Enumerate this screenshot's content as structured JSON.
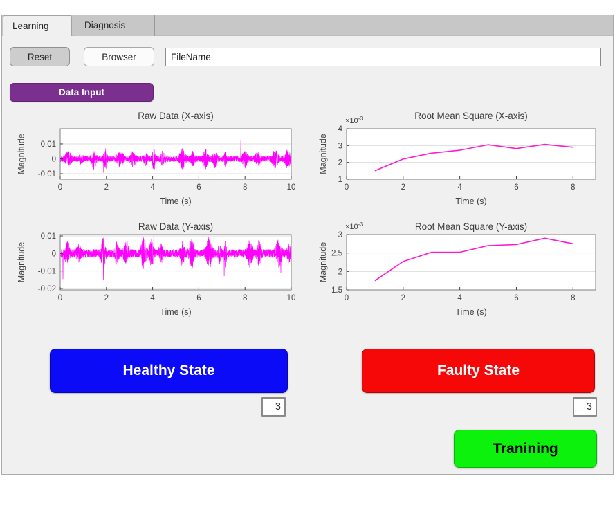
{
  "window": {
    "background": "#ffffff",
    "panel_background": "#f0f0f0"
  },
  "tabs": [
    {
      "label": "Learning",
      "active": true
    },
    {
      "label": "Diagnosis",
      "active": false
    }
  ],
  "toolbar": {
    "reset": "Reset",
    "browser": "Browser",
    "filename": "FileName"
  },
  "data_input": {
    "label": "Data Input",
    "color": "#7b2f8e"
  },
  "states": {
    "healthy": {
      "label": "Healthy State",
      "color": "#0b0bf7",
      "count": "3"
    },
    "faulty": {
      "label": "Faulty State",
      "color": "#f70808",
      "count": "3"
    },
    "training": {
      "label": "Tranining",
      "color": "#0cf20c"
    }
  },
  "chart_data": [
    {
      "type": "line",
      "subtype": "raw-vibration-noise",
      "title": "Raw Data (X-axis)",
      "xlabel": "Time (s)",
      "ylabel": "Magnitude",
      "xlim": [
        0,
        10
      ],
      "ylim": [
        -0.0137,
        0.0202
      ],
      "xticks": [
        0,
        2,
        4,
        6,
        8,
        10
      ],
      "xtick_labels": [
        "0",
        "2",
        "4",
        "6",
        "8",
        "10"
      ],
      "yticks": [
        -0.01,
        0,
        0.01
      ],
      "ytick_labels": [
        "-0.01",
        "0",
        "0.01"
      ],
      "grid": "horizontal",
      "line_color": "#ff00ff",
      "signal": {
        "kind": "random-vibration",
        "seed": 13,
        "n": 2400,
        "base_amplitude": 0.0019,
        "bursts": [
          [
            0.35,
            0.12,
            0.004
          ],
          [
            0.9,
            0.08,
            0.002
          ],
          [
            1.45,
            0.1,
            0.0055
          ],
          [
            1.95,
            0.07,
            0.006
          ],
          [
            2.6,
            0.12,
            0.0045
          ],
          [
            3.15,
            0.1,
            0.004
          ],
          [
            3.7,
            0.08,
            0.003
          ],
          [
            4.05,
            0.07,
            0.0062
          ],
          [
            4.45,
            0.08,
            0.004
          ],
          [
            5.3,
            0.12,
            0.0055
          ],
          [
            5.75,
            0.08,
            0.0035
          ],
          [
            6.3,
            0.1,
            0.005
          ],
          [
            6.7,
            0.08,
            0.0045
          ],
          [
            7.15,
            0.05,
            0.004
          ],
          [
            8.0,
            0.1,
            0.0045
          ],
          [
            8.55,
            0.1,
            0.004
          ],
          [
            9.3,
            0.12,
            0.0045
          ],
          [
            9.85,
            0.1,
            0.0055
          ]
        ],
        "spikes": [
          [
            7.82,
            0.0128
          ],
          [
            1.88,
            -0.0092
          ],
          [
            4.05,
            0.0095
          ]
        ]
      }
    },
    {
      "type": "line",
      "title": "Root Mean Square (X-axis)",
      "xlabel": "Time (s)",
      "ylabel": "Magnitude",
      "y_multiplier": "×10",
      "y_multiplier_exp": "-3",
      "xlim": [
        0,
        8.8
      ],
      "ylim": [
        1,
        4
      ],
      "xticks": [
        0,
        2,
        4,
        6,
        8
      ],
      "xtick_labels": [
        "0",
        "2",
        "4",
        "6",
        "8"
      ],
      "yticks": [
        1,
        2,
        3,
        4
      ],
      "ytick_labels": [
        "1",
        "2",
        "3",
        "4"
      ],
      "grid": "horizontal",
      "line_color": "#ff1ad1",
      "points": [
        [
          1,
          1.5
        ],
        [
          2,
          2.2
        ],
        [
          3,
          2.55
        ],
        [
          4,
          2.72
        ],
        [
          5,
          3.05
        ],
        [
          6,
          2.82
        ],
        [
          7,
          3.07
        ],
        [
          8,
          2.9
        ]
      ]
    },
    {
      "type": "line",
      "subtype": "raw-vibration-noise",
      "title": "Raw Data (Y-axis)",
      "xlabel": "Time (s)",
      "ylabel": "Magnitude",
      "xlim": [
        0,
        10
      ],
      "ylim": [
        -0.0208,
        0.0108
      ],
      "xticks": [
        0,
        2,
        4,
        6,
        8,
        10
      ],
      "xtick_labels": [
        "0",
        "2",
        "4",
        "6",
        "8",
        "10"
      ],
      "yticks": [
        -0.02,
        -0.01,
        0,
        0.01
      ],
      "ytick_labels": [
        "-0.02",
        "-0.01",
        "0",
        "0.01"
      ],
      "grid": "horizontal",
      "line_color": "#ff00ff",
      "signal": {
        "kind": "random-vibration",
        "seed": 29,
        "n": 2400,
        "base_amplitude": 0.0023,
        "bursts": [
          [
            0.3,
            0.1,
            0.006
          ],
          [
            0.8,
            0.1,
            0.003
          ],
          [
            1.85,
            0.09,
            0.0085
          ],
          [
            2.45,
            0.08,
            0.005
          ],
          [
            2.85,
            0.1,
            0.0065
          ],
          [
            3.6,
            0.1,
            0.007
          ],
          [
            3.95,
            0.08,
            0.0075
          ],
          [
            4.35,
            0.07,
            0.005
          ],
          [
            5.3,
            0.08,
            0.006
          ],
          [
            5.7,
            0.1,
            0.0065
          ],
          [
            6.45,
            0.12,
            0.0075
          ],
          [
            6.9,
            0.06,
            0.004
          ],
          [
            7.15,
            0.05,
            0.006
          ],
          [
            8.2,
            0.1,
            0.006
          ],
          [
            8.6,
            0.08,
            0.0055
          ],
          [
            9.45,
            0.12,
            0.0065
          ],
          [
            9.9,
            0.06,
            0.004
          ]
        ],
        "spikes": [
          [
            0.12,
            -0.0145
          ],
          [
            1.87,
            -0.0152
          ],
          [
            7.1,
            -0.0128
          ],
          [
            4.05,
            0.0102
          ],
          [
            9.55,
            -0.011
          ]
        ]
      }
    },
    {
      "type": "line",
      "title": "Root Mean Square (Y-axis)",
      "xlabel": "Time (s)",
      "ylabel": "Magnitude",
      "y_multiplier": "×10",
      "y_multiplier_exp": "-3",
      "xlim": [
        0,
        8.8
      ],
      "ylim": [
        1.5,
        3
      ],
      "xticks": [
        0,
        2,
        4,
        6,
        8
      ],
      "xtick_labels": [
        "0",
        "2",
        "4",
        "6",
        "8"
      ],
      "yticks": [
        1.5,
        2,
        2.5,
        3
      ],
      "ytick_labels": [
        "1.5",
        "2",
        "2.5",
        "3"
      ],
      "grid": "horizontal",
      "line_color": "#ff1ad1",
      "points": [
        [
          1,
          1.75
        ],
        [
          2,
          2.27
        ],
        [
          3,
          2.52
        ],
        [
          4,
          2.52
        ],
        [
          5,
          2.7
        ],
        [
          6,
          2.73
        ],
        [
          7,
          2.9
        ],
        [
          8,
          2.75
        ]
      ]
    }
  ]
}
